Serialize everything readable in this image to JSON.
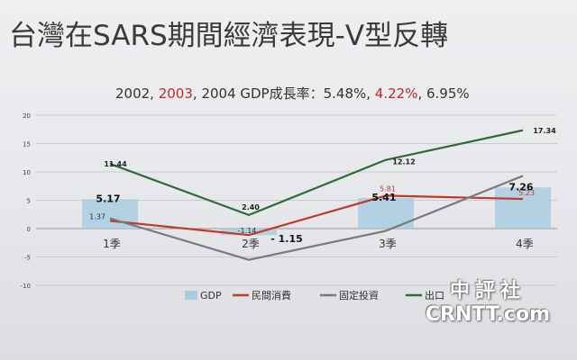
{
  "title": "台灣在SARS期間經濟表現-V型反轉",
  "subtitle": {
    "years_a": "2002, ",
    "years_b": "2003",
    "years_c": ", 2004 GDP成長率：5.48%, ",
    "rate_red": "4.22%",
    "rate_end": ", 6.95%"
  },
  "watermark": {
    "cn": "中評社",
    "en": "CRNTT.com"
  },
  "colors": {
    "gdp": "#a9cde0",
    "private_consumption": "#c0392b",
    "fixed_investment": "#7a7a7a",
    "exports": "#2e6b34",
    "axis": "#9a9a9a"
  },
  "chart_data": {
    "type": "line",
    "categories": [
      "1季",
      "2季",
      "3季",
      "4季"
    ],
    "ylim": [
      -10,
      20
    ],
    "yticks": [
      20,
      15,
      10,
      5,
      0,
      -5,
      -10
    ],
    "grid": true,
    "legend": "bottom",
    "series": [
      {
        "name": "GDP",
        "type": "bar",
        "values": [
          5.17,
          -1.15,
          5.41,
          7.26
        ],
        "labels": [
          "5.17",
          "- 1.15",
          "5.41",
          "7.26"
        ]
      },
      {
        "name": "民間消費",
        "type": "line",
        "values": [
          1.37,
          -1.14,
          5.81,
          5.23
        ],
        "labels": [
          "1.37",
          "-1.14",
          "5.81",
          "5.23"
        ]
      },
      {
        "name": "固定投資",
        "type": "line",
        "values": [
          1.8,
          -5.5,
          -0.4,
          9.3
        ],
        "labels": []
      },
      {
        "name": "出口",
        "type": "line",
        "values": [
          11.44,
          2.4,
          12.12,
          17.34
        ],
        "labels": [
          "11.44",
          "2.40",
          "12.12",
          "17.34"
        ]
      }
    ]
  }
}
